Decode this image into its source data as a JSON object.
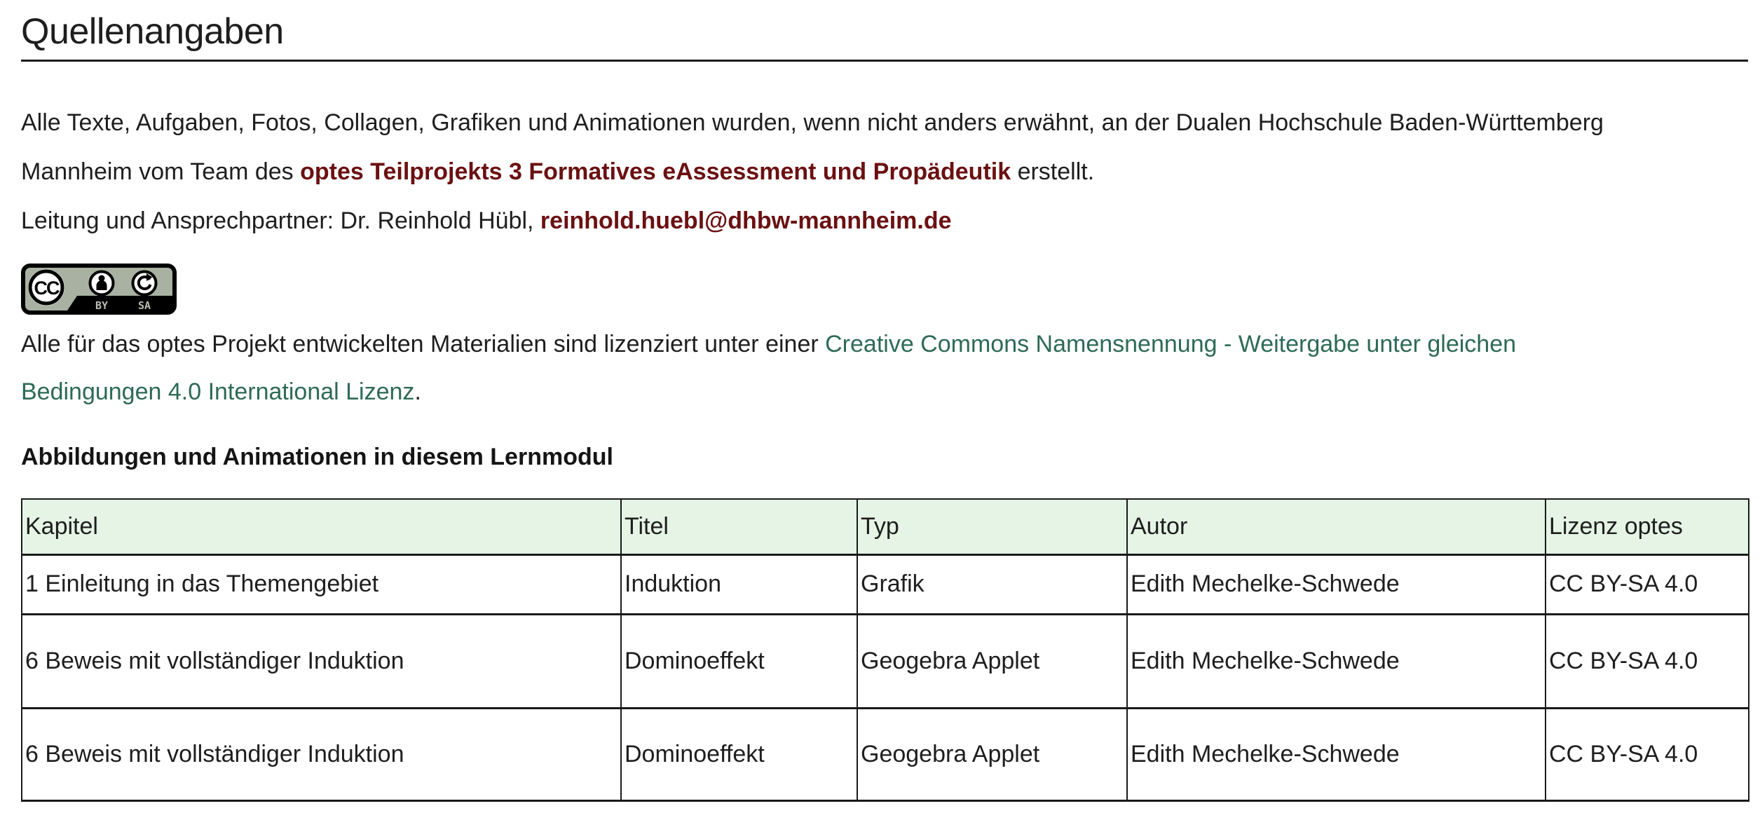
{
  "colors": {
    "accent_red": "#6b1011",
    "link_green": "#2d6a56",
    "table_header_bg": "#e5f4e5",
    "border_dark": "#1a1a1a",
    "badge_gray": "#a9b1a2"
  },
  "page": {
    "title": "Quellenangaben"
  },
  "intro": {
    "lines": [
      [
        {
          "t": "Alle Texte, Aufgaben, Fotos, Collagen, Grafiken und Animationen wurden, wenn nicht anders erwähnt, an der Dualen Hochschule Baden-Württemberg",
          "s": "normal"
        }
      ],
      [
        {
          "t": "Mannheim vom Team des ",
          "s": "normal"
        },
        {
          "t": "optes Teilprojekts 3 Formatives eAssessment und Propädeutik",
          "s": "bold-red",
          "n": "project-name-emphasis"
        },
        {
          "t": " erstellt.",
          "s": "normal"
        }
      ],
      [
        {
          "t": "Leitung und Ansprechpartner: Dr. Reinhold Hübl, ",
          "s": "normal"
        },
        {
          "t": "reinhold.huebl@dhbw-mannheim.de",
          "s": "bold-red",
          "n": "email-link",
          "i": "true"
        }
      ]
    ]
  },
  "badge": {
    "cc": "CC",
    "by": "BY",
    "sa": "SA"
  },
  "license": {
    "lines": [
      [
        {
          "t": "Alle für das optes Projekt entwickelten Materialien sind lizenziert unter einer ",
          "s": "normal"
        },
        {
          "t": "Creative Commons Namensnennung - Weitergabe unter gleichen",
          "s": "link",
          "n": "license-link",
          "i": "true"
        }
      ],
      [
        {
          "t": "Bedingungen 4.0 International Lizenz",
          "s": "link",
          "n": "license-link",
          "i": "true"
        },
        {
          "t": ".",
          "s": "normal"
        }
      ]
    ]
  },
  "section": {
    "heading": "Abbildungen und Animationen in diesem Lernmodul"
  },
  "table": {
    "columns": [
      "Kapitel",
      "Titel",
      "Typ",
      "Autor",
      "Lizenz optes"
    ],
    "rows": [
      [
        "1 Einleitung in das Themengebiet",
        "Induktion",
        "Grafik",
        "Edith Mechelke-Schwede",
        "CC BY-SA 4.0"
      ],
      [
        "6 Beweis mit vollständiger Induktion",
        "Dominoeffekt",
        "Geogebra Applet",
        "Edith Mechelke-Schwede",
        "CC BY-SA 4.0"
      ],
      [
        "6 Beweis mit vollständiger Induktion",
        "Dominoeffekt",
        "Geogebra Applet",
        "Edith Mechelke-Schwede",
        "CC BY-SA 4.0"
      ]
    ]
  }
}
